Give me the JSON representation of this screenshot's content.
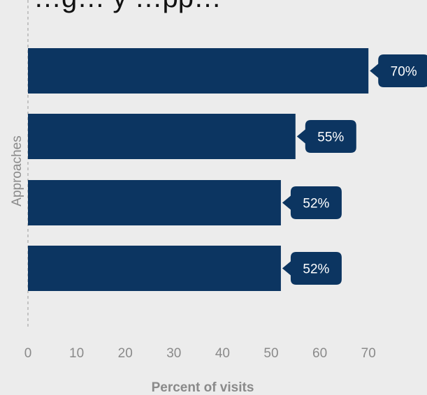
{
  "chart_data": {
    "type": "bar",
    "orientation": "horizontal",
    "title": "…g… y …pp…",
    "xlabel": "Percent of visits",
    "ylabel": "Approaches",
    "categories": [
      "",
      "",
      "",
      ""
    ],
    "values": [
      70,
      55,
      52,
      52
    ],
    "data_labels": [
      "70%",
      "55%",
      "52%",
      "52%"
    ],
    "xlim": [
      0,
      80
    ],
    "xticks": [
      0,
      10,
      20,
      30,
      40,
      50,
      60,
      70
    ],
    "tick_labels": [
      "0",
      "10",
      "20",
      "30",
      "40",
      "50",
      "60",
      "70"
    ],
    "grid": false,
    "legend": "none",
    "colors": {
      "bar": "#0c3561",
      "background": "#ececec",
      "axis_text": "#8a8a8a",
      "label_text": "#ffffff",
      "axis_line": "#a8a8a8"
    }
  }
}
